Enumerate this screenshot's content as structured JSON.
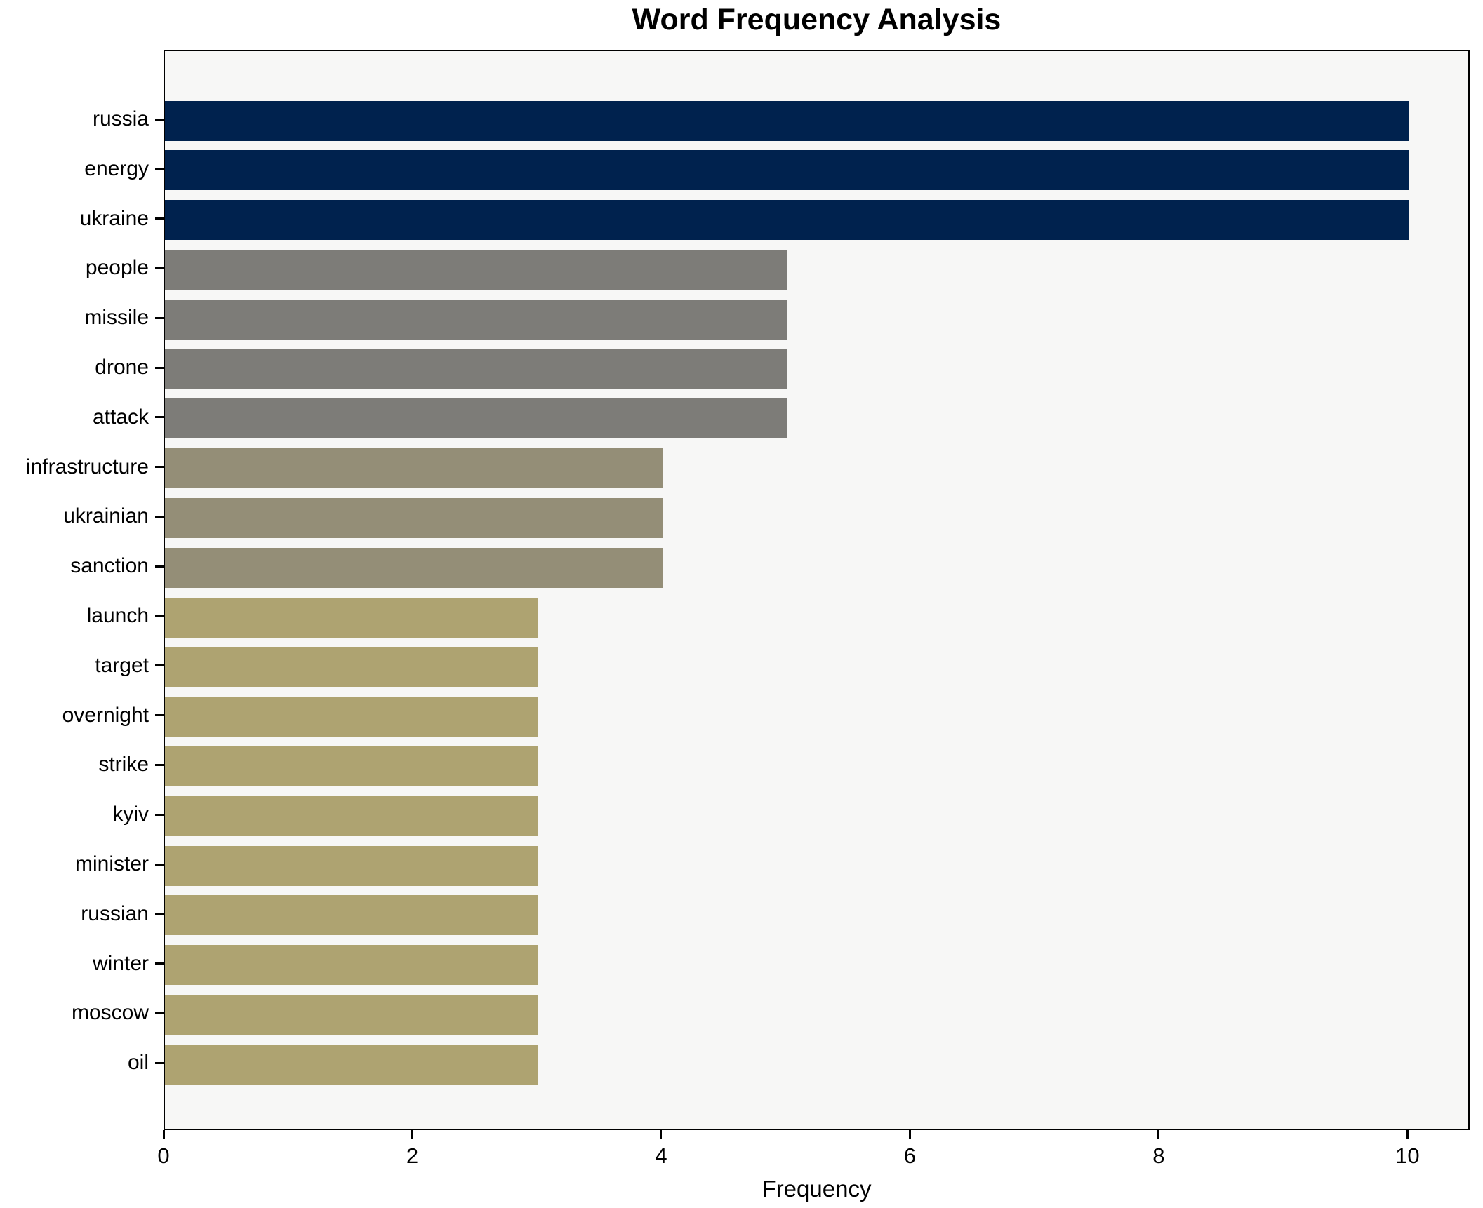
{
  "chart_data": {
    "type": "bar",
    "orientation": "horizontal",
    "title": "Word Frequency Analysis",
    "xlabel": "Frequency",
    "ylabel": "",
    "categories": [
      "russia",
      "energy",
      "ukraine",
      "people",
      "missile",
      "drone",
      "attack",
      "infrastructure",
      "ukrainian",
      "sanction",
      "launch",
      "target",
      "overnight",
      "strike",
      "kyiv",
      "minister",
      "russian",
      "winter",
      "moscow",
      "oil"
    ],
    "values": [
      10,
      10,
      10,
      5,
      5,
      5,
      5,
      4,
      4,
      4,
      3,
      3,
      3,
      3,
      3,
      3,
      3,
      3,
      3,
      3
    ],
    "bar_colors": [
      "#00224e",
      "#00224e",
      "#00224e",
      "#7d7c78",
      "#7d7c78",
      "#7d7c78",
      "#7d7c78",
      "#948e77",
      "#948e77",
      "#948e77",
      "#aea371",
      "#aea371",
      "#aea371",
      "#aea371",
      "#aea371",
      "#aea371",
      "#aea371",
      "#aea371",
      "#aea371",
      "#aea371"
    ],
    "xlim": [
      0,
      10.5
    ],
    "x_ticks": [
      0,
      2,
      4,
      6,
      8,
      10
    ],
    "grid": false,
    "legend": "none",
    "colors": {
      "plot_background": "#f7f7f6",
      "figure_background": "#ffffff",
      "axis": "#000000",
      "text": "#000000"
    }
  }
}
